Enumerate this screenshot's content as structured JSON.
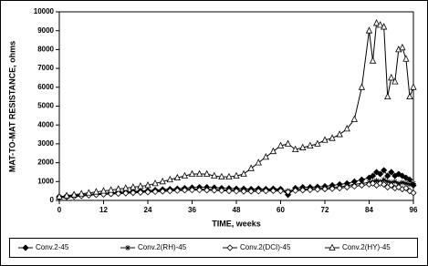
{
  "chart_data": {
    "type": "line",
    "x_label": "TIME, weeks",
    "y_label": "MAT-TO-MAT RESISTANCE, ohms",
    "x": [
      0,
      2,
      4,
      6,
      8,
      10,
      12,
      14,
      16,
      18,
      20,
      22,
      24,
      26,
      28,
      30,
      32,
      34,
      36,
      38,
      40,
      42,
      44,
      46,
      48,
      50,
      52,
      54,
      56,
      58,
      60,
      62,
      64,
      66,
      68,
      70,
      72,
      74,
      76,
      78,
      80,
      82,
      84,
      85,
      86,
      87,
      88,
      89,
      90,
      91,
      92,
      93,
      94,
      95,
      96
    ],
    "series": [
      {
        "name": "Conv.2-45",
        "color": "#000000",
        "marker": "diamond-filled",
        "values": [
          200,
          230,
          260,
          290,
          320,
          350,
          380,
          400,
          420,
          440,
          470,
          500,
          520,
          550,
          580,
          600,
          620,
          650,
          680,
          700,
          700,
          680,
          650,
          640,
          620,
          620,
          600,
          620,
          600,
          620,
          600,
          300,
          650,
          700,
          700,
          720,
          750,
          800,
          850,
          900,
          1000,
          1100,
          1200,
          1300,
          1500,
          1400,
          1600,
          1300,
          1500,
          1300,
          1400,
          1300,
          1200,
          1100,
          800
        ]
      },
      {
        "name": "Conv.2(RH)-45",
        "color": "#000000",
        "marker": "star",
        "values": [
          180,
          210,
          240,
          270,
          300,
          330,
          360,
          380,
          400,
          420,
          440,
          460,
          480,
          500,
          520,
          540,
          560,
          580,
          600,
          600,
          590,
          580,
          560,
          550,
          540,
          540,
          530,
          540,
          550,
          560,
          560,
          500,
          580,
          600,
          620,
          640,
          660,
          700,
          720,
          780,
          850,
          900,
          950,
          1000,
          1050,
          1000,
          1100,
          1000,
          950,
          1000,
          900,
          950,
          900,
          850,
          900
        ]
      },
      {
        "name": "Conv.2(DCI)-45",
        "color": "#000000",
        "marker": "diamond-open",
        "values": [
          150,
          180,
          210,
          240,
          270,
          300,
          320,
          340,
          360,
          380,
          400,
          420,
          440,
          460,
          480,
          500,
          520,
          540,
          550,
          550,
          540,
          530,
          520,
          500,
          490,
          480,
          480,
          490,
          500,
          510,
          500,
          450,
          520,
          540,
          560,
          580,
          600,
          620,
          650,
          700,
          750,
          800,
          850,
          900,
          800,
          900,
          850,
          700,
          800,
          650,
          700,
          600,
          650,
          500,
          400
        ]
      },
      {
        "name": "Conv.2(HY)-45",
        "color": "#000000",
        "marker": "triangle-open",
        "values": [
          200,
          250,
          300,
          350,
          400,
          450,
          500,
          550,
          600,
          650,
          700,
          750,
          800,
          900,
          1000,
          1100,
          1200,
          1300,
          1400,
          1400,
          1400,
          1300,
          1250,
          1250,
          1300,
          1400,
          1700,
          2000,
          2300,
          2600,
          2900,
          3000,
          2700,
          2800,
          2900,
          3000,
          3200,
          3300,
          3500,
          3800,
          4300,
          6000,
          9000,
          7400,
          9400,
          9300,
          9200,
          5500,
          6500,
          6300,
          8000,
          8100,
          7500,
          5500,
          6000
        ]
      }
    ],
    "xlim": [
      0,
      96
    ],
    "xticks": [
      0,
      12,
      24,
      36,
      48,
      60,
      72,
      84,
      96
    ],
    "ylim": [
      0,
      10000
    ],
    "yticks": [
      0,
      1000,
      2000,
      3000,
      4000,
      5000,
      6000,
      7000,
      8000,
      9000,
      10000
    ],
    "legend": "bottom"
  }
}
